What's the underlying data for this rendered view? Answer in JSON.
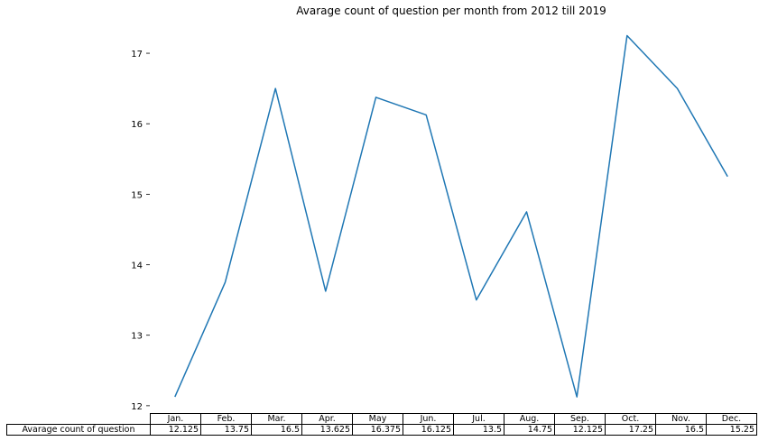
{
  "chart_data": {
    "type": "line",
    "title": "Avarage count of question per month from 2012 till 2019",
    "xlabel": "",
    "ylabel": "",
    "categories": [
      "Jan.",
      "Feb.",
      "Mar.",
      "Apr.",
      "May",
      "Jun.",
      "Jul.",
      "Aug.",
      "Sep.",
      "Oct.",
      "Nov.",
      "Dec."
    ],
    "series": [
      {
        "name": "Avarage count of question",
        "values": [
          12.125,
          13.75,
          16.5,
          13.625,
          16.375,
          16.125,
          13.5,
          14.75,
          12.125,
          17.25,
          16.5,
          15.25
        ],
        "cell_labels": [
          "12.125",
          "13.75",
          "16.5",
          "13.625",
          "16.375",
          "16.125",
          "13.5",
          "14.75",
          "12.125",
          "17.25",
          "16.5",
          "15.25"
        ]
      }
    ],
    "yticks": [
      "12",
      "13",
      "14",
      "15",
      "16",
      "17"
    ],
    "ylim": [
      11.96,
      17.41
    ],
    "grid": false,
    "line_color": "#1f77b4"
  }
}
